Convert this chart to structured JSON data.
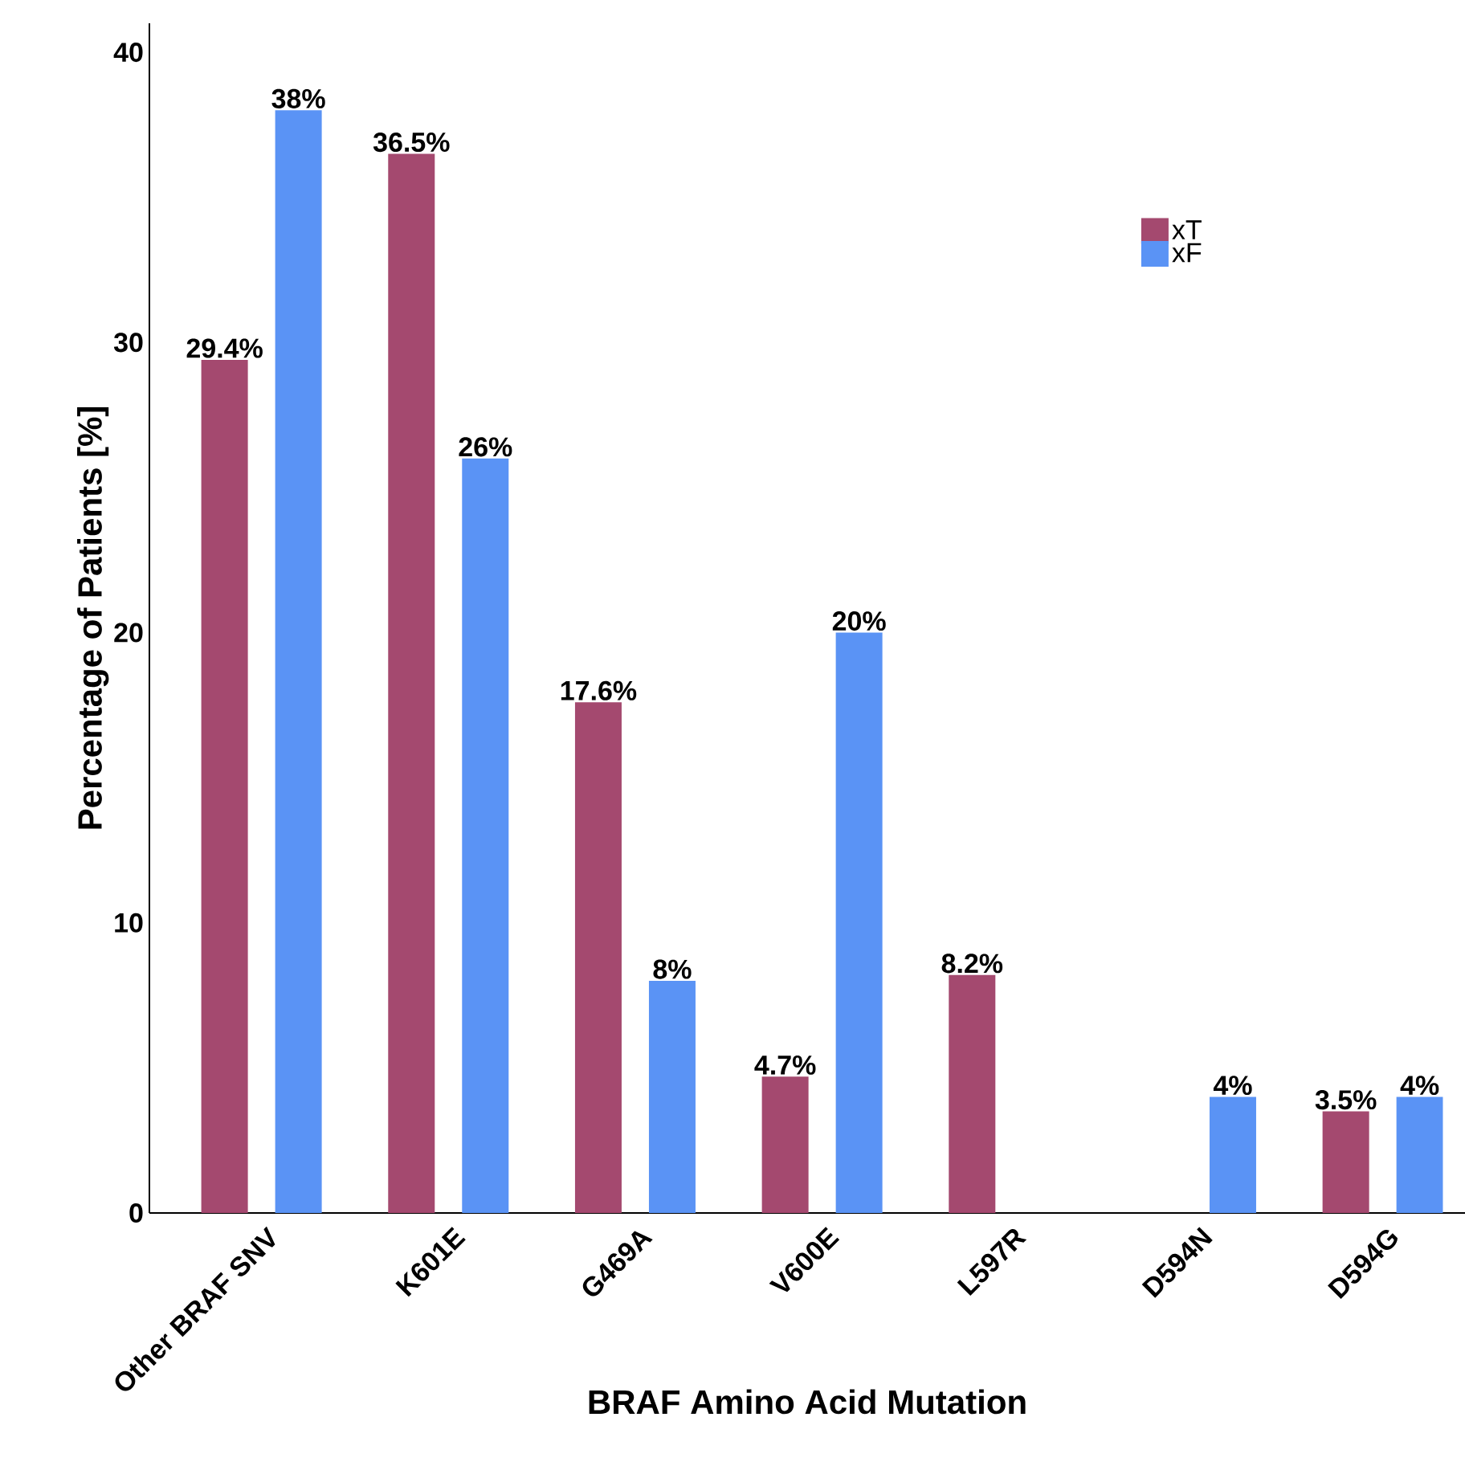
{
  "chart_data": {
    "type": "bar",
    "xlabel": "BRAF Amino Acid Mutation",
    "ylabel": "Percentage of Patients [%]",
    "categories": [
      "Other BRAF SNV",
      "K601E",
      "G469A",
      "V600E",
      "L597R",
      "D594N",
      "D594G"
    ],
    "series": [
      {
        "name": "xT",
        "color": "#a4496f",
        "values": [
          29.4,
          36.5,
          17.6,
          4.7,
          8.2,
          null,
          3.5
        ],
        "value_labels": [
          "29.4%",
          "36.5%",
          "17.6%",
          "4.7%",
          "8.2%",
          null,
          "3.5%"
        ]
      },
      {
        "name": "xF",
        "color": "#5a93f5",
        "values": [
          38,
          26,
          8,
          20,
          null,
          4,
          4
        ],
        "value_labels": [
          "38%",
          "26%",
          "8%",
          "20%",
          null,
          "4%",
          "4%"
        ]
      }
    ],
    "ylim": [
      0,
      41
    ],
    "yticks": [
      0,
      10,
      20,
      30,
      40
    ],
    "grid": false,
    "legend": "top right"
  }
}
